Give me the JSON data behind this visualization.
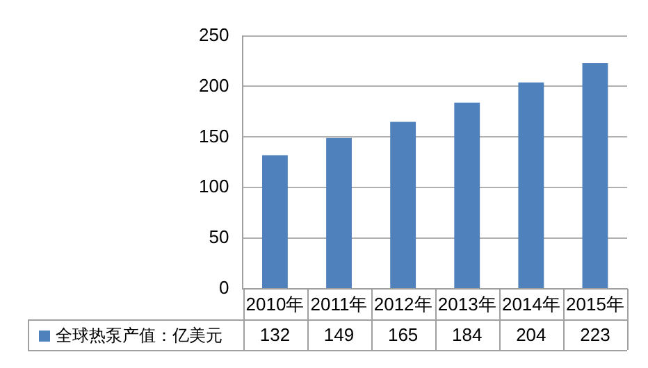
{
  "chart_data": {
    "type": "bar",
    "categories": [
      "2010年",
      "2011年",
      "2012年",
      "2013年",
      "2014年",
      "2015年"
    ],
    "series": [
      {
        "name": "全球热泵产值：亿美元",
        "color": "#4f81bd",
        "values": [
          132,
          149,
          165,
          184,
          204,
          223
        ]
      }
    ],
    "ylim": [
      0,
      250
    ],
    "yticks": [
      0,
      50,
      100,
      150,
      200,
      250
    ],
    "grid": "y",
    "legend": "bottom",
    "data_labels": true
  }
}
